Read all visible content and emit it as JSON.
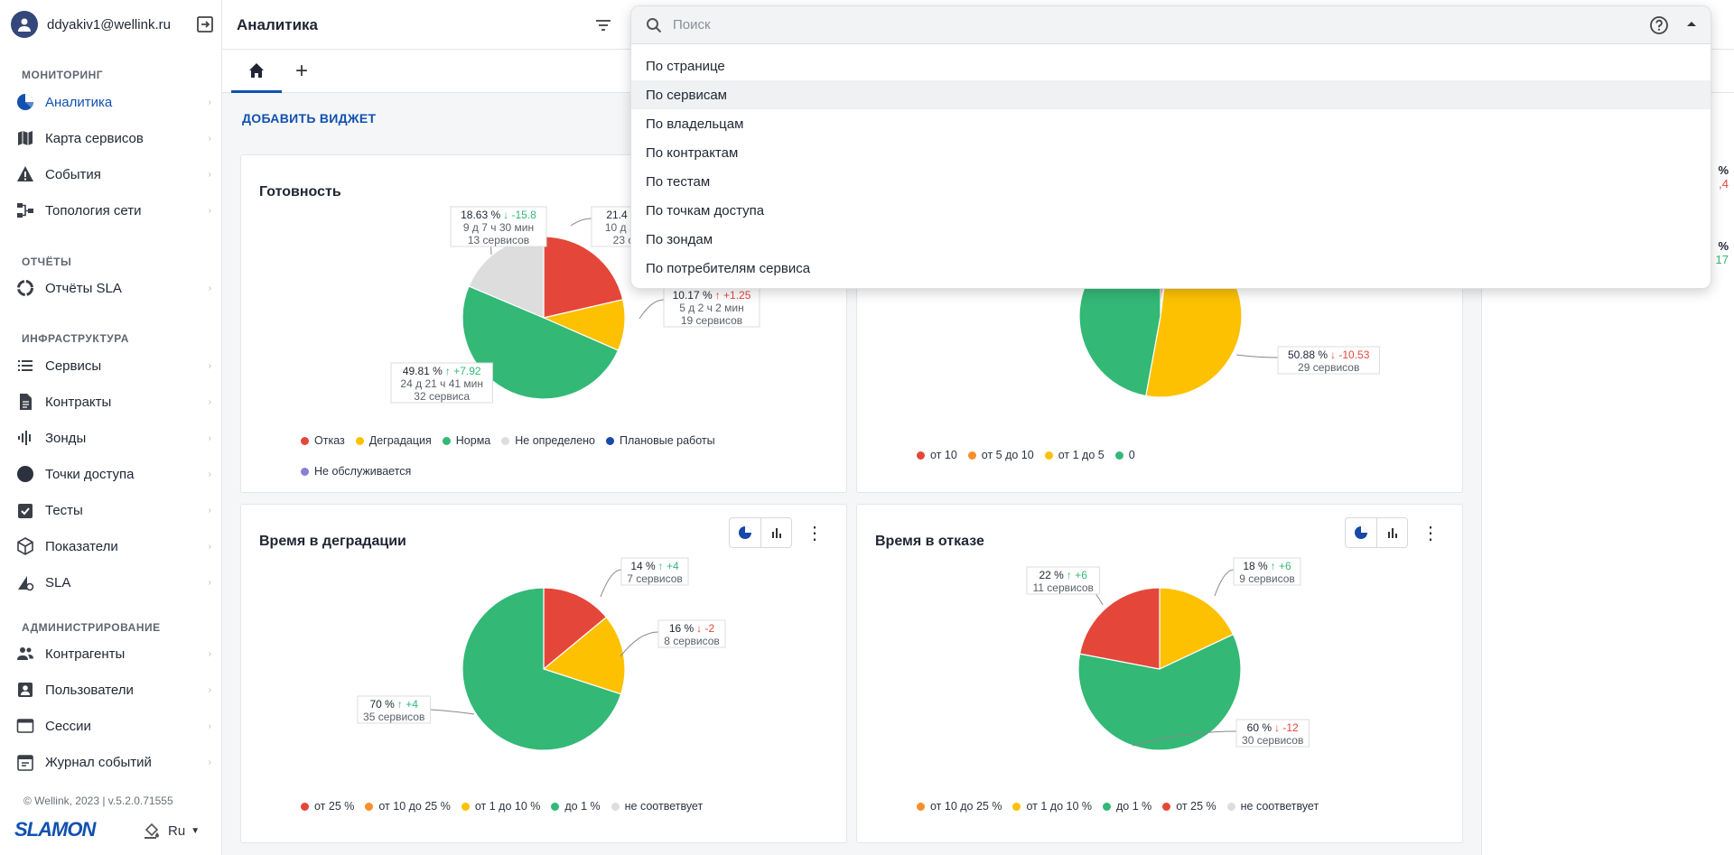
{
  "user": {
    "email": "ddyakiv1@wellink.ru"
  },
  "sidebar": {
    "sections": [
      {
        "title": "МОНИТОРИНГ",
        "items": [
          {
            "label": "Аналитика",
            "icon": "analytics-pie-icon",
            "active": true
          },
          {
            "label": "Карта сервисов",
            "icon": "map-icon"
          },
          {
            "label": "События",
            "icon": "warning-icon"
          },
          {
            "label": "Топология сети",
            "icon": "topology-icon"
          }
        ]
      },
      {
        "title": "ОТЧЁТЫ",
        "items": [
          {
            "label": "Отчёты SLA",
            "icon": "report-ring-icon"
          }
        ]
      },
      {
        "title": "ИНФРАСТРУКТУРА",
        "items": [
          {
            "label": "Сервисы",
            "icon": "list-icon"
          },
          {
            "label": "Контракты",
            "icon": "document-icon"
          },
          {
            "label": "Зонды",
            "icon": "probe-icon"
          },
          {
            "label": "Точки доступа",
            "icon": "circle-icon"
          },
          {
            "label": "Тесты",
            "icon": "checklist-icon"
          },
          {
            "label": "Показатели",
            "icon": "cube-icon"
          },
          {
            "label": "SLA",
            "icon": "sla-gear-icon"
          }
        ]
      },
      {
        "title": "АДМИНИСТРИРОВАНИЕ",
        "items": [
          {
            "label": "Контрагенты",
            "icon": "people-icon"
          },
          {
            "label": "Пользователи",
            "icon": "user-card-icon"
          },
          {
            "label": "Сессии",
            "icon": "window-icon"
          },
          {
            "label": "Журнал событий",
            "icon": "calendar-icon"
          }
        ]
      }
    ],
    "footer": {
      "version": "© Wellink, 2023 | v.5.2.0.71555",
      "logo": "SLAMON",
      "lang": "Ru"
    }
  },
  "header": {
    "title": "Аналитика"
  },
  "toolbar": {
    "add_widget": "ДОБАВИТЬ ВИДЖЕТ"
  },
  "dropdown": {
    "placeholder": "Поиск",
    "highlighted": 1,
    "options": [
      "По странице",
      "По сервисам",
      "По владельцам",
      "По контрактам",
      "По тестам",
      "По точкам доступа",
      "По зондам",
      "По потребителям сервиса"
    ]
  },
  "colors": {
    "red": "#e4473a",
    "yellow": "#fdc102",
    "green": "#33b876",
    "gray": "#dddddd",
    "blue": "#1848a8",
    "purple": "#8a7fd6",
    "orange": "#f98f2a",
    "accent": "#1151b0"
  },
  "right_peek": {
    "values": [
      {
        "main": "%",
        "delta": ",4",
        "dir": "down"
      },
      {
        "main": "%",
        "delta": "17",
        "dir": "up"
      }
    ]
  },
  "charts": [
    {
      "title": "Готовность",
      "chart_data": {
        "type": "pie",
        "slices": [
          {
            "name": "Отказ",
            "value": 21.4,
            "color": "#e4473a"
          },
          {
            "name": "Деградация",
            "value": 10.17,
            "color": "#fdc102"
          },
          {
            "name": "Норма",
            "value": 49.81,
            "color": "#33b876"
          },
          {
            "name": "Не определено",
            "value": 18.63,
            "color": "#dddddd"
          }
        ],
        "labels": [
          {
            "pct": "21.4 %",
            "delta": "",
            "line2": "10 д 16",
            "line3": "23 с"
          },
          {
            "pct": "10.17 %",
            "delta": "↑ +1.25",
            "dir": "down",
            "line2": "5 д 2 ч 2 мин",
            "line3": "19 сервисов"
          },
          {
            "pct": "49.81 %",
            "delta": "↑ +7.92",
            "dir": "up",
            "line2": "24 д 21 ч 41 мин",
            "line3": "32 сервиса"
          },
          {
            "pct": "18.63 %",
            "delta": "↓ -15.8",
            "dir": "up",
            "line2": "9 д 7 ч 30 мин",
            "line3": "13 сервисов"
          }
        ]
      },
      "legend": [
        {
          "label": "Отказ",
          "color": "#e4473a"
        },
        {
          "label": "Деградация",
          "color": "#fdc102"
        },
        {
          "label": "Норма",
          "color": "#33b876"
        },
        {
          "label": "Не определено",
          "color": "#dddddd"
        },
        {
          "label": "Плановые работы",
          "color": "#1848a8"
        },
        {
          "label": "Не обслуживается",
          "color": "#8a7fd6"
        }
      ]
    },
    {
      "title": "",
      "chart_data": {
        "type": "pie",
        "slices": [
          {
            "name": "от 10",
            "value": 1.2,
            "color": "#e4473a"
          },
          {
            "name": "от 5 до 10",
            "value": 0.8,
            "color": "#f98f2a"
          },
          {
            "name": "от 1 до 5",
            "value": 50.88,
            "color": "#fdc102"
          },
          {
            "name": "0",
            "value": 47.12,
            "color": "#33b876"
          }
        ],
        "labels": [
          {
            "pct": "50.88 %",
            "delta": "↓ -10.53",
            "dir": "down",
            "line2": "29 сервисов",
            "line3": ""
          }
        ]
      },
      "legend": [
        {
          "label": "от 10",
          "color": "#e4473a"
        },
        {
          "label": "от 5 до 10",
          "color": "#f98f2a"
        },
        {
          "label": "от 1 до 5",
          "color": "#fdc102"
        },
        {
          "label": "0",
          "color": "#33b876"
        }
      ]
    },
    {
      "title": "Время в деградации",
      "chart_data": {
        "type": "pie",
        "slices": [
          {
            "name": "от 25 %",
            "value": 14,
            "color": "#e4473a"
          },
          {
            "name": "от 1 до 10 %",
            "value": 16,
            "color": "#fdc102"
          },
          {
            "name": "до 1 %",
            "value": 70,
            "color": "#33b876"
          }
        ],
        "labels": [
          {
            "pct": "14 %",
            "delta": "↑ +4",
            "dir": "up",
            "line2": "7 сервисов",
            "line3": ""
          },
          {
            "pct": "16 %",
            "delta": "↓ -2",
            "dir": "down",
            "line2": "8 сервисов",
            "line3": ""
          },
          {
            "pct": "70 %",
            "delta": "↑ +4",
            "dir": "up",
            "line2": "35 сервисов",
            "line3": ""
          }
        ]
      },
      "legend": [
        {
          "label": "от 25 %",
          "color": "#e4473a"
        },
        {
          "label": "от 10 до 25 %",
          "color": "#f98f2a"
        },
        {
          "label": "от 1 до 10 %",
          "color": "#fdc102"
        },
        {
          "label": "до 1 %",
          "color": "#33b876"
        },
        {
          "label": "не соответвует",
          "color": "#dddddd"
        }
      ]
    },
    {
      "title": "Время в отказе",
      "chart_data": {
        "type": "pie",
        "slices": [
          {
            "name": "от 1 до 10 %",
            "value": 18,
            "color": "#fdc102"
          },
          {
            "name": "до 1 %",
            "value": 60,
            "color": "#33b876"
          },
          {
            "name": "от 25 %",
            "value": 22,
            "color": "#e4473a"
          }
        ],
        "labels": [
          {
            "pct": "18 %",
            "delta": "↑ +6",
            "dir": "up",
            "line2": "9 сервисов",
            "line3": ""
          },
          {
            "pct": "60 %",
            "delta": "↓ -12",
            "dir": "down",
            "line2": "30 сервисов",
            "line3": ""
          },
          {
            "pct": "22 %",
            "delta": "↑ +6",
            "dir": "up",
            "line2": "11 сервисов",
            "line3": ""
          }
        ]
      },
      "legend": [
        {
          "label": "от 10 до 25 %",
          "color": "#f98f2a"
        },
        {
          "label": "от 1 до 10 %",
          "color": "#fdc102"
        },
        {
          "label": "до 1 %",
          "color": "#33b876"
        },
        {
          "label": "от 25 %",
          "color": "#e4473a"
        },
        {
          "label": "не соответвует",
          "color": "#dddddd"
        }
      ]
    }
  ]
}
